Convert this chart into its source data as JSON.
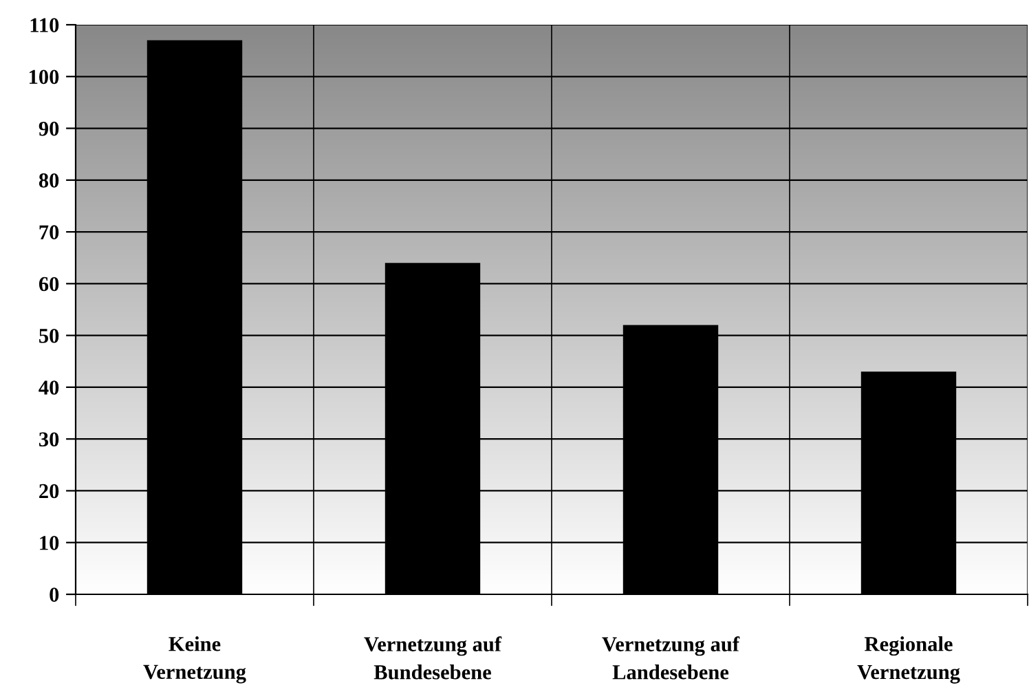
{
  "chart_data": {
    "type": "bar",
    "categories": [
      "Keine\nVernetzung",
      "Vernetzung auf\nBundesebene",
      "Vernetzung auf\nLandesebene",
      "Regionale\nVernetzung"
    ],
    "values": [
      107,
      64,
      52,
      43
    ],
    "color": "#000000",
    "ylim": [
      0,
      110
    ],
    "yticks": [
      0,
      10,
      20,
      30,
      40,
      50,
      60,
      70,
      80,
      90,
      100,
      110
    ],
    "grid": true,
    "legend": false
  }
}
